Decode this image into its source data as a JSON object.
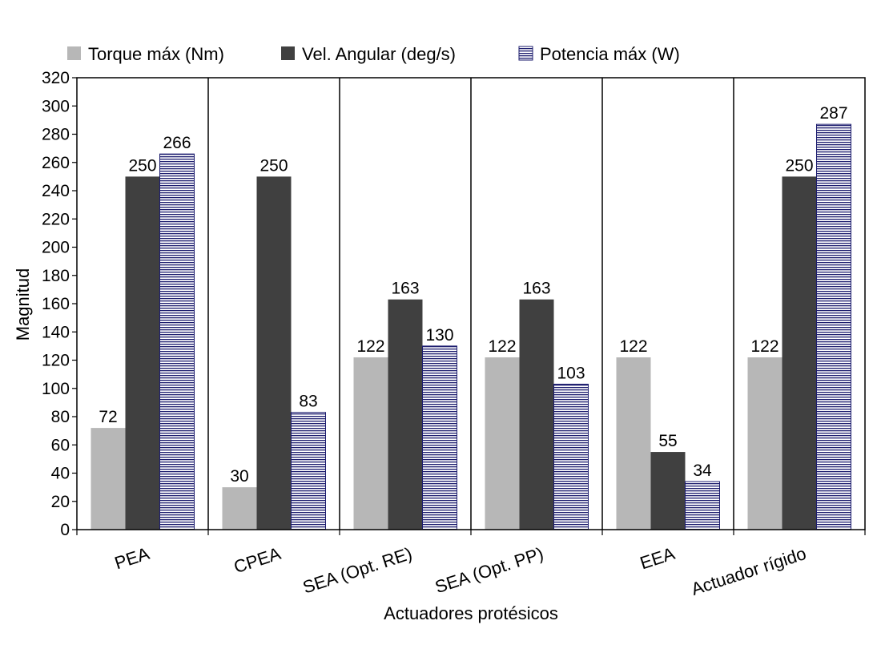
{
  "chart_data": {
    "type": "bar",
    "xlabel": "Actuadores protésicos",
    "ylabel": "Magnitud",
    "ylim": [
      0,
      320
    ],
    "ytick_step": 20,
    "legend_position": "top",
    "categories": [
      "PEA",
      "CPEA",
      "SEA (Opt. RE)",
      "SEA (Opt. PP)",
      "EEA",
      "Actuador rígido"
    ],
    "series": [
      {
        "name": "Torque máx (Nm)",
        "values": [
          72,
          30,
          122,
          122,
          122,
          122
        ],
        "color": "#b7b7b7",
        "pattern": "solid"
      },
      {
        "name": "Vel. Angular (deg/s)",
        "values": [
          250,
          250,
          163,
          163,
          55,
          250
        ],
        "color": "#404040",
        "pattern": "solid"
      },
      {
        "name": "Potencia máx (W)",
        "values": [
          266,
          83,
          130,
          103,
          34,
          287
        ],
        "color": "#1c1c6e",
        "pattern": "horizontal-stripes"
      }
    ]
  }
}
